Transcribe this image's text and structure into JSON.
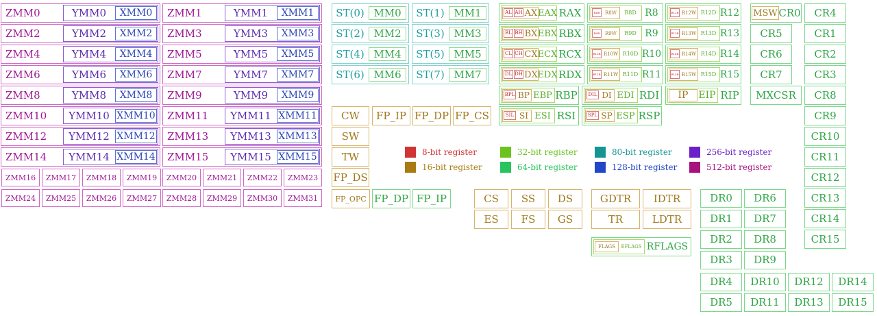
{
  "zmm_grid": [
    [
      "ZMM0",
      "YMM0",
      "XMM0",
      "ZMM1",
      "YMM1",
      "XMM1"
    ],
    [
      "ZMM2",
      "YMM2",
      "XMM2",
      "ZMM3",
      "YMM3",
      "XMM3"
    ],
    [
      "ZMM4",
      "YMM4",
      "XMM4",
      "ZMM5",
      "YMM5",
      "XMM5"
    ],
    [
      "ZMM6",
      "YMM6",
      "XMM6",
      "ZMM7",
      "YMM7",
      "XMM7"
    ],
    [
      "ZMM8",
      "YMM8",
      "XMM8",
      "ZMM9",
      "YMM9",
      "XMM9"
    ],
    [
      "ZMM10",
      "YMM10",
      "XMM10",
      "ZMM11",
      "YMM11",
      "XMM11"
    ],
    [
      "ZMM12",
      "YMM12",
      "XMM12",
      "ZMM13",
      "YMM13",
      "XMM13"
    ],
    [
      "ZMM14",
      "YMM14",
      "XMM14",
      "ZMM15",
      "YMM15",
      "XMM15"
    ]
  ],
  "zmm_small": [
    [
      "ZMM16",
      "ZMM17",
      "ZMM18",
      "ZMM19",
      "ZMM20",
      "ZMM21",
      "ZMM22",
      "ZMM23"
    ],
    [
      "ZMM24",
      "ZMM25",
      "ZMM26",
      "ZMM27",
      "ZMM28",
      "ZMM29",
      "ZMM30",
      "ZMM31"
    ]
  ],
  "fpu_stack": [
    [
      "ST(0)",
      "MM0",
      "ST(1)",
      "MM1"
    ],
    [
      "ST(2)",
      "MM2",
      "ST(3)",
      "MM3"
    ],
    [
      "ST(4)",
      "MM4",
      "ST(5)",
      "MM5"
    ],
    [
      "ST(6)",
      "MM6",
      "ST(7)",
      "MM7"
    ]
  ],
  "legacy_gpr": [
    {
      "l8": "AL",
      "h8": "AH",
      "r16": "AX",
      "r32": "EAX",
      "r64": "RAX"
    },
    {
      "l8": "BL",
      "h8": "BH",
      "r16": "BX",
      "r32": "EBX",
      "r64": "RBX"
    },
    {
      "l8": "CL",
      "h8": "CH",
      "r16": "CX",
      "r32": "ECX",
      "r64": "RCX"
    },
    {
      "l8": "DL",
      "h8": "DH",
      "r16": "DX",
      "r32": "EDX",
      "r64": "RDX"
    }
  ],
  "new_gpr": [
    [
      {
        "b": "R8B",
        "w": "R8W",
        "d": "R8D",
        "q": "R8"
      },
      {
        "b": "R12B",
        "w": "R12W",
        "d": "R12D",
        "q": "R12"
      }
    ],
    [
      {
        "b": "R9B",
        "w": "R9W",
        "d": "R9D",
        "q": "R9"
      },
      {
        "b": "R13B",
        "w": "R13W",
        "d": "R13D",
        "q": "R13"
      }
    ],
    [
      {
        "b": "R10B",
        "w": "R10W",
        "d": "R10D",
        "q": "R10"
      },
      {
        "b": "R14B",
        "w": "R14W",
        "d": "R14D",
        "q": "R14"
      }
    ],
    [
      {
        "b": "R11B",
        "w": "R11W",
        "d": "R11D",
        "q": "R11"
      },
      {
        "b": "R15B",
        "w": "R15W",
        "d": "R15D",
        "q": "R15"
      }
    ]
  ],
  "index_regs": [
    {
      "b": "BPL",
      "w": "BP",
      "d": "EBP",
      "q": "RBP"
    },
    {
      "b": "DIL",
      "w": "DI",
      "d": "EDI",
      "q": "RDI"
    },
    {
      "b": "SIL",
      "w": "SI",
      "d": "ESI",
      "q": "RSI"
    },
    {
      "b": "SPL",
      "w": "SP",
      "d": "ESP",
      "q": "RSP"
    }
  ],
  "ip": {
    "w": "IP",
    "d": "EIP",
    "q": "RIP"
  },
  "msw": {
    "w": "MSW",
    "q": "CR0"
  },
  "mxcsr": "MXCSR",
  "fpu_ctl": {
    "cw": "CW",
    "fp_ip": "FP_IP",
    "fp_dp": "FP_DP",
    "fp_cs": "FP_CS",
    "sw": "SW",
    "tw": "TW",
    "fp_ds": "FP_DS",
    "fp_opc": "FP_OPC",
    "fp_dp2": "FP_DP",
    "fp_ip2": "FP_IP"
  },
  "segment": [
    "CS",
    "SS",
    "DS",
    "ES",
    "FS",
    "GS"
  ],
  "tables": [
    "GDTR",
    "IDTR",
    "TR",
    "LDTR"
  ],
  "flags": {
    "w": "FLAGS",
    "d": "EFLAGS",
    "q": "RFLAGS"
  },
  "cr": [
    "CR4",
    "CR5",
    "CR1",
    "CR6",
    "CR2",
    "CR7",
    "CR3",
    "CR8",
    "CR9",
    "CR10",
    "CR11",
    "CR12",
    "CR13",
    "CR14",
    "CR15"
  ],
  "dr": [
    "DR0",
    "DR6",
    "DR1",
    "DR7",
    "DR2",
    "DR8",
    "DR3",
    "DR9",
    "DR4",
    "DR10",
    "DR12",
    "DR14",
    "DR5",
    "DR11",
    "DR13",
    "DR15"
  ],
  "legend": [
    {
      "label": "8-bit register",
      "color": "#d03434"
    },
    {
      "label": "16-bit register",
      "color": "#a87c12"
    },
    {
      "label": "32-bit register",
      "color": "#6cc21e"
    },
    {
      "label": "64-bit register",
      "color": "#28c45c"
    },
    {
      "label": "80-bit register",
      "color": "#169494"
    },
    {
      "label": "128-bit register",
      "color": "#2246c8"
    },
    {
      "label": "256-bit register",
      "color": "#6a22c8"
    },
    {
      "label": "512-bit register",
      "color": "#a8127e"
    }
  ]
}
